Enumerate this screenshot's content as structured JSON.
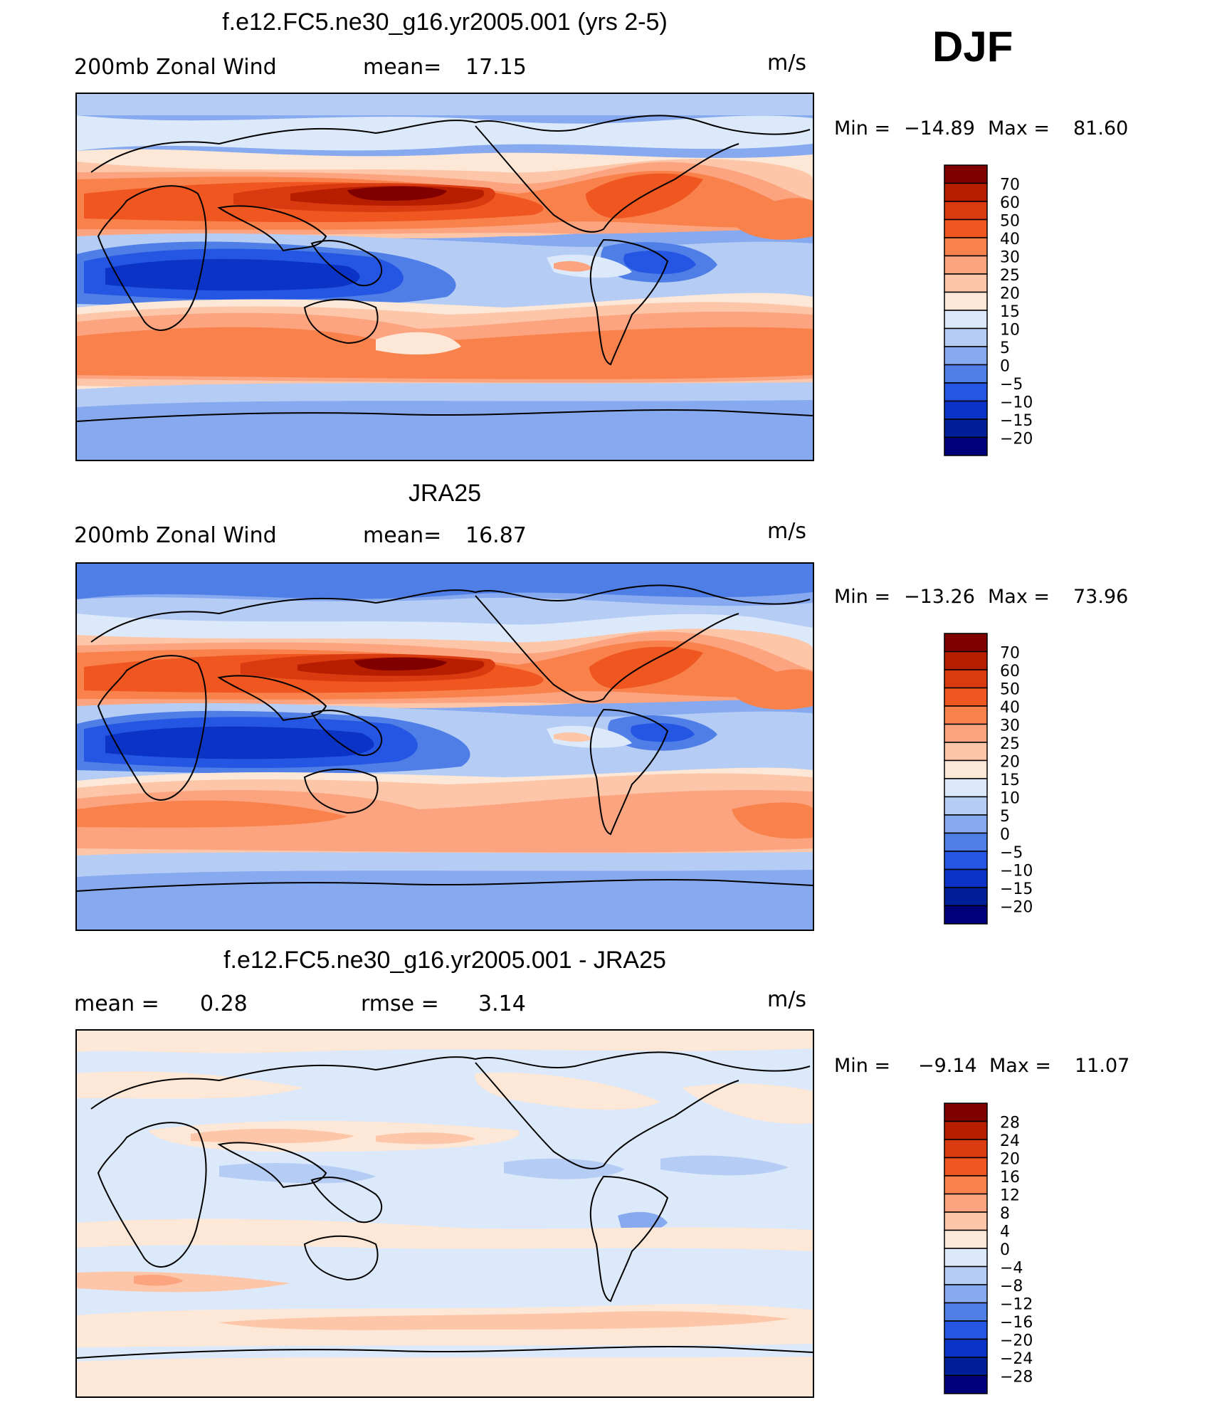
{
  "season": "DJF",
  "panels": [
    {
      "title": "f.e12.FC5.ne30_g16.yr2005.001 (yrs 2-5)",
      "left_label": "200mb Zonal Wind",
      "stat_label": "mean=",
      "stat_value": "17.15",
      "units": "m/s",
      "min_label": "Min =",
      "min_value": "−14.89",
      "max_label": "Max =",
      "max_value": "81.60",
      "colorbar": {
        "levels": [
          "70",
          "60",
          "50",
          "40",
          "30",
          "25",
          "20",
          "15",
          "10",
          "5",
          "0",
          "−5",
          "−10",
          "−15",
          "−20"
        ],
        "colors": [
          "#800000",
          "#b71e00",
          "#d93a10",
          "#f0561f",
          "#f9814b",
          "#fca47f",
          "#fdc6a8",
          "#fde7d6",
          "#dce9fa",
          "#b5ccf5",
          "#86a9ef",
          "#4f7ee6",
          "#2556e3",
          "#0b34c6",
          "#001f99",
          "#00007a"
        ]
      }
    },
    {
      "title": "JRA25",
      "left_label": "200mb Zonal Wind",
      "stat_label": "mean=",
      "stat_value": "16.87",
      "units": "m/s",
      "min_label": "Min =",
      "min_value": "−13.26",
      "max_label": "Max =",
      "max_value": "73.96",
      "colorbar": {
        "levels": [
          "70",
          "60",
          "50",
          "40",
          "30",
          "25",
          "20",
          "15",
          "10",
          "5",
          "0",
          "−5",
          "−10",
          "−15",
          "−20"
        ],
        "colors": [
          "#800000",
          "#b71e00",
          "#d93a10",
          "#f0561f",
          "#f9814b",
          "#fca47f",
          "#fdc6a8",
          "#fde7d6",
          "#dce9fa",
          "#b5ccf5",
          "#86a9ef",
          "#4f7ee6",
          "#2556e3",
          "#0b34c6",
          "#001f99",
          "#00007a"
        ]
      }
    },
    {
      "title": "f.e12.FC5.ne30_g16.yr2005.001 - JRA25",
      "left_label": "mean =      0.28",
      "stat_label": "rmse =",
      "stat_value": "3.14",
      "units": "m/s",
      "min_label": "Min =",
      "min_value": "−9.14",
      "max_label": "Max =",
      "max_value": "11.07",
      "colorbar": {
        "levels": [
          "28",
          "24",
          "20",
          "16",
          "12",
          "8",
          "4",
          "0",
          "−4",
          "−8",
          "−12",
          "−16",
          "−20",
          "−24",
          "−28"
        ],
        "colors": [
          "#800000",
          "#b71e00",
          "#d93a10",
          "#f0561f",
          "#f9814b",
          "#fca47f",
          "#fdc6a8",
          "#fde7d6",
          "#dce9fa",
          "#b5ccf5",
          "#86a9ef",
          "#4f7ee6",
          "#2556e3",
          "#0b34c6",
          "#001f99",
          "#00007a"
        ]
      }
    }
  ]
}
